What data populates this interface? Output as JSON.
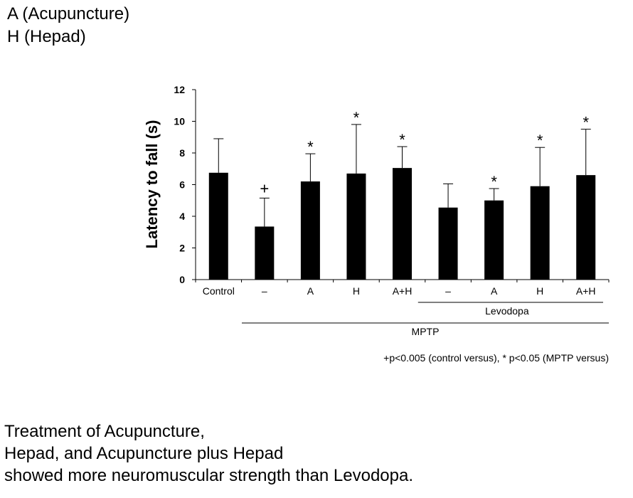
{
  "legend": {
    "lines": [
      "A (Acupuncture)",
      "H (Hepad)"
    ]
  },
  "caption": {
    "lines": [
      "Treatment of Acupuncture,",
      "Hepad, and Acupuncture plus Hepad",
      "showed more neuromuscular strength than Levodopa."
    ]
  },
  "chart_data": {
    "type": "bar",
    "title": "",
    "xlabel": "",
    "ylabel": "Latency to fall (s)",
    "ylim": [
      0,
      12
    ],
    "yticks": [
      0,
      2,
      4,
      6,
      8,
      10,
      12
    ],
    "categories": [
      "Control",
      "–",
      "A",
      "H",
      "A+H",
      "–",
      "A",
      "H",
      "A+H"
    ],
    "values": [
      6.75,
      3.35,
      6.2,
      6.7,
      7.05,
      4.55,
      5.0,
      5.9,
      6.6
    ],
    "error_upper": [
      8.9,
      5.15,
      7.95,
      9.8,
      8.4,
      6.05,
      5.75,
      8.35,
      9.5
    ],
    "significance": [
      "",
      "+",
      "*",
      "*",
      "*",
      "",
      "*",
      "*",
      "*"
    ],
    "groups": [
      {
        "label": "Levodopa",
        "from_index": 5,
        "to_index": 8
      },
      {
        "label": "MPTP",
        "from_index": 1,
        "to_index": 8
      }
    ],
    "note": "+p<0.005 (control versus), * p<0.05 (MPTP versus)"
  }
}
